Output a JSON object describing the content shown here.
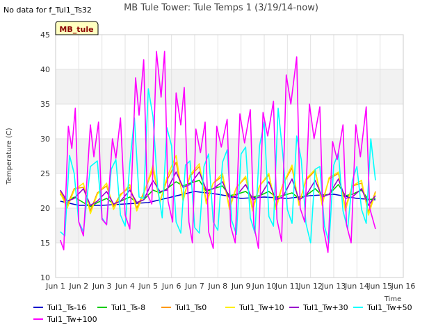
{
  "note": "No data for f_Tul1_Ts32",
  "badge": "MB_tule",
  "chart_data": {
    "type": "line",
    "title": "MB Tule Tower: Tule Temps 1 (3/19/14-now)",
    "xlabel": "Time",
    "ylabel": "Temperature (C)",
    "xlim": [
      1,
      16
    ],
    "ylim": [
      10,
      45
    ],
    "xticks": [
      1,
      2,
      3,
      4,
      5,
      6,
      7,
      8,
      9,
      10,
      11,
      12,
      13,
      14,
      15,
      16
    ],
    "xtick_labels": [
      "Jun 1",
      "Jun 2",
      "Jun 3",
      "Jun 4",
      "Jun 5",
      "Jun 6",
      "Jun 7",
      "Jun 8",
      "Jun 9",
      "Jun 10",
      "Jun 11",
      "Jun 12",
      "Jun 13",
      "Jun 14",
      "Jun 15",
      "Jun 16"
    ],
    "yticks": [
      10,
      15,
      20,
      25,
      30,
      35,
      40,
      45
    ],
    "ytick_labels": [
      "10",
      "15",
      "20",
      "25",
      "30",
      "35",
      "40",
      "45"
    ],
    "bands": [
      [
        15,
        20
      ],
      [
        25,
        30
      ],
      [
        35,
        40
      ]
    ],
    "series": [
      {
        "name": "Tul1_Ts-16",
        "color": "#0000cc",
        "x": [
          1.2,
          2,
          3,
          4,
          5,
          6,
          7,
          8,
          9,
          10,
          11,
          12,
          13,
          14,
          14.8
        ],
        "y": [
          21.0,
          20.4,
          20.4,
          20.6,
          20.8,
          21.6,
          22.4,
          22.0,
          21.4,
          21.6,
          21.4,
          21.8,
          22.0,
          21.4,
          21.2
        ]
      },
      {
        "name": "Tul1_Ts-8",
        "color": "#00cc00",
        "x": [
          1.2,
          1.5,
          1.8,
          2.2,
          2.5,
          2.8,
          3.2,
          3.5,
          3.8,
          4.2,
          4.5,
          4.8,
          5.2,
          5.5,
          5.8,
          6.2,
          6.5,
          6.8,
          7.2,
          7.5,
          7.8,
          8.2,
          8.5,
          8.8,
          9.2,
          9.5,
          9.8,
          10.2,
          10.5,
          10.8,
          11.2,
          11.5,
          11.8,
          12.2,
          12.5,
          12.8,
          13.2,
          13.5,
          13.8,
          14.2,
          14.5,
          14.8
        ],
        "y": [
          22.0,
          21.0,
          21.6,
          20.8,
          20.2,
          20.8,
          21.4,
          20.6,
          21.0,
          21.6,
          20.8,
          21.2,
          22.6,
          22.2,
          22.8,
          23.8,
          23.2,
          23.6,
          24.0,
          22.4,
          22.8,
          23.2,
          21.8,
          22.0,
          22.4,
          21.6,
          21.8,
          22.4,
          21.6,
          21.8,
          22.2,
          21.4,
          21.8,
          22.8,
          21.8,
          22.0,
          23.4,
          21.8,
          22.0,
          22.6,
          21.2,
          21.4
        ]
      },
      {
        "name": "Tul1_Ts0",
        "color": "#ff9900",
        "x": [
          1.2,
          1.5,
          1.8,
          2.2,
          2.5,
          2.8,
          3.2,
          3.5,
          3.8,
          4.2,
          4.5,
          4.8,
          5.2,
          5.5,
          5.8,
          6.2,
          6.5,
          6.8,
          7.2,
          7.5,
          7.8,
          8.2,
          8.5,
          8.8,
          9.2,
          9.5,
          9.8,
          10.2,
          10.5,
          10.8,
          11.2,
          11.5,
          11.8,
          12.2,
          12.5,
          12.8,
          13.2,
          13.5,
          13.8,
          14.2,
          14.5,
          14.8
        ],
        "y": [
          22.4,
          20.4,
          22.8,
          23.0,
          19.6,
          22.2,
          23.2,
          20.2,
          22.0,
          23.0,
          20.0,
          22.2,
          25.6,
          21.0,
          24.0,
          26.6,
          21.4,
          24.6,
          26.0,
          21.0,
          23.6,
          24.6,
          20.2,
          23.0,
          24.4,
          20.0,
          23.2,
          24.8,
          20.2,
          23.4,
          25.8,
          20.6,
          24.0,
          25.4,
          20.8,
          24.2,
          25.0,
          20.0,
          23.2,
          23.6,
          19.4,
          22.4
        ]
      },
      {
        "name": "Tul1_Tw+10",
        "color": "#ffee00",
        "x": [
          1.2,
          1.5,
          1.8,
          2.2,
          2.5,
          2.8,
          3.2,
          3.5,
          3.8,
          4.2,
          4.5,
          4.8,
          5.2,
          5.5,
          5.8,
          6.2,
          6.5,
          6.8,
          7.2,
          7.5,
          7.8,
          8.2,
          8.5,
          8.8,
          9.2,
          9.5,
          9.8,
          10.2,
          10.5,
          10.8,
          11.2,
          11.5,
          11.8,
          12.2,
          12.5,
          12.8,
          13.2,
          13.5,
          13.8,
          14.2,
          14.5,
          14.8
        ],
        "y": [
          22.2,
          20.0,
          22.6,
          23.6,
          19.2,
          22.0,
          23.6,
          19.8,
          21.8,
          23.4,
          19.6,
          22.0,
          26.2,
          20.8,
          24.4,
          27.6,
          21.0,
          24.8,
          26.4,
          20.6,
          23.6,
          25.0,
          19.8,
          23.0,
          24.6,
          19.6,
          23.2,
          25.0,
          19.8,
          23.4,
          26.2,
          20.4,
          24.2,
          25.6,
          20.4,
          24.4,
          25.2,
          19.6,
          23.2,
          24.0,
          19.0,
          22.2
        ]
      },
      {
        "name": "Tul1_Tw+30",
        "color": "#9900cc",
        "x": [
          1.2,
          1.5,
          1.8,
          2.2,
          2.5,
          2.8,
          3.2,
          3.5,
          3.8,
          4.2,
          4.5,
          4.8,
          5.2,
          5.5,
          5.8,
          6.2,
          6.5,
          6.8,
          7.2,
          7.5,
          7.8,
          8.2,
          8.5,
          8.8,
          9.2,
          9.5,
          9.8,
          10.2,
          10.5,
          10.8,
          11.2,
          11.5,
          11.8,
          12.2,
          12.5,
          12.8,
          13.2,
          13.5,
          13.8,
          14.2,
          14.5,
          14.8
        ],
        "y": [
          22.6,
          21.0,
          21.4,
          22.8,
          20.4,
          21.0,
          22.4,
          20.6,
          21.0,
          22.6,
          20.8,
          21.2,
          24.0,
          22.4,
          22.6,
          25.2,
          23.0,
          23.4,
          25.2,
          22.6,
          22.8,
          23.8,
          21.4,
          21.8,
          23.4,
          21.2,
          21.6,
          23.8,
          21.2,
          21.6,
          24.2,
          21.2,
          21.8,
          24.0,
          21.6,
          22.0,
          24.2,
          21.4,
          21.6,
          22.8,
          20.4,
          21.8
        ]
      },
      {
        "name": "Tul1_Tw+50",
        "color": "#00ffff",
        "x": [
          1.2,
          1.4,
          1.6,
          1.8,
          2.0,
          2.2,
          2.5,
          2.8,
          3.0,
          3.2,
          3.4,
          3.6,
          3.8,
          4.0,
          4.2,
          4.4,
          4.6,
          4.8,
          5.0,
          5.2,
          5.4,
          5.6,
          5.8,
          6.0,
          6.2,
          6.4,
          6.6,
          6.8,
          7.0,
          7.2,
          7.4,
          7.6,
          7.8,
          8.0,
          8.2,
          8.4,
          8.6,
          8.8,
          9.0,
          9.2,
          9.4,
          9.6,
          9.8,
          10.0,
          10.2,
          10.4,
          10.6,
          10.8,
          11.0,
          11.2,
          11.4,
          11.6,
          11.8,
          12.0,
          12.2,
          12.4,
          12.6,
          12.8,
          13.0,
          13.2,
          13.4,
          13.6,
          13.8,
          14.0,
          14.2,
          14.4,
          14.6,
          14.8
        ],
        "y": [
          16.6,
          16.0,
          27.6,
          25.0,
          18.0,
          16.6,
          26.0,
          26.8,
          18.6,
          17.6,
          25.6,
          27.0,
          19.0,
          17.4,
          26.4,
          33.0,
          21.6,
          21.4,
          37.2,
          33.2,
          23.0,
          18.6,
          31.6,
          29.0,
          18.0,
          16.4,
          26.2,
          26.8,
          17.2,
          16.4,
          26.0,
          27.8,
          18.0,
          16.8,
          26.6,
          28.4,
          18.2,
          16.2,
          27.8,
          28.8,
          18.6,
          16.4,
          29.0,
          32.4,
          18.8,
          17.4,
          34.4,
          27.8,
          19.8,
          17.8,
          30.4,
          27.0,
          17.8,
          15.0,
          25.6,
          26.0,
          17.4,
          15.0,
          26.2,
          28.0,
          19.6,
          17.0,
          24.0,
          26.0,
          19.8,
          17.8,
          30.0,
          24.0
        ]
      },
      {
        "name": "Tul1_Tw+100",
        "color": "#ff00ff",
        "x": [
          1.2,
          1.35,
          1.55,
          1.7,
          1.85,
          2.0,
          2.2,
          2.5,
          2.65,
          2.85,
          3.0,
          3.2,
          3.45,
          3.6,
          3.8,
          4.0,
          4.2,
          4.45,
          4.6,
          4.8,
          4.95,
          5.15,
          5.35,
          5.55,
          5.7,
          5.85,
          6.05,
          6.2,
          6.4,
          6.55,
          6.75,
          6.9,
          7.05,
          7.25,
          7.45,
          7.6,
          7.8,
          7.95,
          8.15,
          8.4,
          8.55,
          8.75,
          8.95,
          9.15,
          9.4,
          9.55,
          9.75,
          9.95,
          10.15,
          10.4,
          10.55,
          10.75,
          10.95,
          11.15,
          11.4,
          11.55,
          11.75,
          11.95,
          12.15,
          12.4,
          12.55,
          12.75,
          12.95,
          13.15,
          13.4,
          13.55,
          13.75,
          13.95,
          14.15,
          14.4,
          14.55,
          14.8
        ],
        "y": [
          15.4,
          14.0,
          31.8,
          28.6,
          34.4,
          18.0,
          16.0,
          32.0,
          27.4,
          32.4,
          18.4,
          17.6,
          30.0,
          27.2,
          33.0,
          19.0,
          17.0,
          38.8,
          33.4,
          41.4,
          22.0,
          20.6,
          42.6,
          36.0,
          42.6,
          21.0,
          18.0,
          36.6,
          32.0,
          37.4,
          18.0,
          15.0,
          31.4,
          28.0,
          32.4,
          16.6,
          14.2,
          31.8,
          28.8,
          32.8,
          17.4,
          15.0,
          33.6,
          29.4,
          34.2,
          17.6,
          14.2,
          33.8,
          30.4,
          35.4,
          18.4,
          15.2,
          39.2,
          35.0,
          41.8,
          20.0,
          18.0,
          35.0,
          30.0,
          34.6,
          17.2,
          13.6,
          29.6,
          27.0,
          32.0,
          17.6,
          15.0,
          32.0,
          27.4,
          34.6,
          20.0,
          17.0
        ]
      }
    ]
  }
}
